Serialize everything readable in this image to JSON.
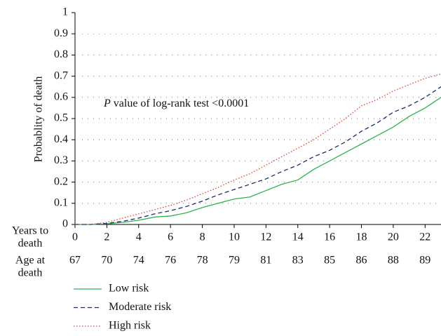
{
  "chart_data": {
    "type": "line",
    "y_label": "Probablity of death",
    "x_label": [
      "Years to",
      "death"
    ],
    "second_axis_label": [
      "Age at",
      "death"
    ],
    "second_axis_labels": [
      "67",
      "70",
      "74",
      "76",
      "78",
      "79",
      "81",
      "83",
      "85",
      "86",
      "88",
      "89"
    ],
    "annotation": {
      "italic": "P",
      "text": "value of log-rank test <0.0001"
    },
    "x": [
      0,
      1,
      2,
      3,
      4,
      5,
      6,
      7,
      8,
      9,
      10,
      11,
      12,
      13,
      14,
      15,
      16,
      17,
      18,
      19,
      20,
      21,
      22,
      23
    ],
    "xlim": [
      0,
      23
    ],
    "xticks": [
      0,
      2,
      4,
      6,
      8,
      10,
      12,
      14,
      16,
      18,
      20,
      22
    ],
    "ylim": [
      0,
      1
    ],
    "yticks": [
      0,
      0.1,
      0.2,
      0.3,
      0.4,
      0.5,
      0.6,
      0.7,
      0.8,
      0.9,
      1
    ],
    "grid": true,
    "series": [
      {
        "name": "Low risk",
        "color": "#2fb34c",
        "dash": "solid",
        "values": [
          0,
          0,
          0.003,
          0.01,
          0.02,
          0.035,
          0.04,
          0.055,
          0.08,
          0.1,
          0.12,
          0.13,
          0.16,
          0.19,
          0.21,
          0.26,
          0.3,
          0.34,
          0.38,
          0.42,
          0.46,
          0.51,
          0.55,
          0.6
        ]
      },
      {
        "name": "Moderate risk",
        "color": "#1f2a6b",
        "dash": "dashed",
        "values": [
          0,
          0,
          0.005,
          0.015,
          0.03,
          0.05,
          0.065,
          0.085,
          0.11,
          0.14,
          0.165,
          0.19,
          0.215,
          0.25,
          0.28,
          0.32,
          0.35,
          0.39,
          0.44,
          0.48,
          0.53,
          0.56,
          0.6,
          0.65
        ]
      },
      {
        "name": "High risk",
        "color": "#e0403a",
        "dash": "dotted",
        "values": [
          0,
          0,
          0.01,
          0.03,
          0.05,
          0.07,
          0.09,
          0.115,
          0.145,
          0.175,
          0.21,
          0.24,
          0.28,
          0.32,
          0.36,
          0.4,
          0.45,
          0.5,
          0.56,
          0.59,
          0.63,
          0.66,
          0.69,
          0.71
        ]
      }
    ]
  }
}
